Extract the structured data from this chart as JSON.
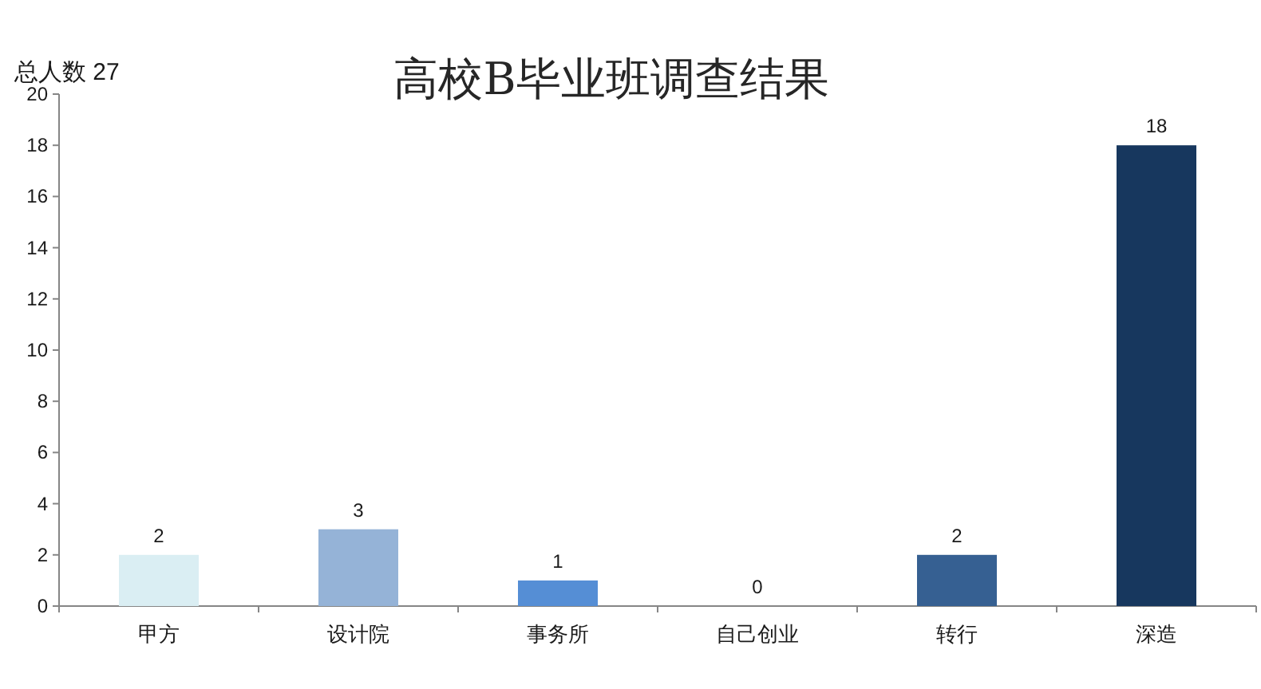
{
  "chart_data": {
    "type": "bar",
    "title": "高校B毕业班调查结果",
    "annotations": [
      "总人数 27"
    ],
    "categories": [
      "甲方",
      "设计院",
      "事务所",
      "自己创业",
      "转行",
      "深造"
    ],
    "values": [
      2,
      3,
      1,
      0,
      2,
      18
    ],
    "colors": [
      "#daeef3",
      "#95b3d7",
      "#558ed5",
      null,
      "#366092",
      "#17375e"
    ],
    "ylim": [
      0,
      20
    ],
    "yticks": [
      0,
      2,
      4,
      6,
      8,
      10,
      12,
      14,
      16,
      18,
      20
    ],
    "data_labels": true
  }
}
